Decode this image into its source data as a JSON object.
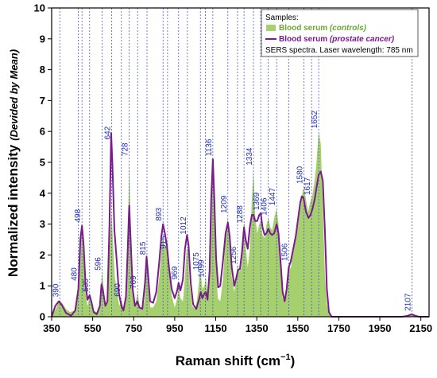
{
  "chart_data": {
    "type": "area",
    "xlabel": "Raman shift (cm",
    "xlabel_sup": "−1",
    "xlabel_close": ")",
    "ylabel_main": "Normalized intensity",
    "ylabel_note": "(Devided by Mean)",
    "xlim": [
      350,
      2190
    ],
    "ylim": [
      0,
      10
    ],
    "x_ticks": [
      350,
      550,
      750,
      950,
      1150,
      1350,
      1550,
      1750,
      1950,
      2150
    ],
    "y_ticks": [
      0,
      1,
      2,
      3,
      4,
      5,
      6,
      7,
      8,
      9,
      10
    ],
    "grid": false,
    "legend_position": "top-right",
    "legend": {
      "header": "Samples:",
      "controls_prefix": "Blood serum ",
      "controls_suffix": "(controls)",
      "cancer_prefix": "Blood serum ",
      "cancer_suffix": "(prostate cancer)",
      "note": "SERS spectra. Laser wavelength: 785 nm"
    },
    "colors": {
      "controls_fill": "#a6cf6e",
      "controls_text": "#6aa832",
      "cancer_line": "#7a1b8c",
      "peak_lines": "#3b45d6"
    },
    "peak_labels": [
      {
        "x": 390,
        "label": "390"
      },
      {
        "x": 480,
        "label": "480"
      },
      {
        "x": 498,
        "label": "498"
      },
      {
        "x": 535,
        "label": "535"
      },
      {
        "x": 596,
        "label": "596"
      },
      {
        "x": 642,
        "label": "642"
      },
      {
        "x": 690,
        "label": "690"
      },
      {
        "x": 728,
        "label": "728"
      },
      {
        "x": 769,
        "label": "769"
      },
      {
        "x": 815,
        "label": "815"
      },
      {
        "x": 893,
        "label": "893"
      },
      {
        "x": 915,
        "label": "915"
      },
      {
        "x": 969,
        "label": "969"
      },
      {
        "x": 1012,
        "label": "1012"
      },
      {
        "x": 1075,
        "label": "1075"
      },
      {
        "x": 1099,
        "label": "1099"
      },
      {
        "x": 1136,
        "label": "1136"
      },
      {
        "x": 1209,
        "label": "1209"
      },
      {
        "x": 1256,
        "label": "1256"
      },
      {
        "x": 1288,
        "label": "1288"
      },
      {
        "x": 1334,
        "label": "1334"
      },
      {
        "x": 1369,
        "label": "1369"
      },
      {
        "x": 1406,
        "label": "1406"
      },
      {
        "x": 1447,
        "label": "1447"
      },
      {
        "x": 1506,
        "label": "1506"
      },
      {
        "x": 1580,
        "label": "1580"
      },
      {
        "x": 1617,
        "label": "1617"
      },
      {
        "x": 1652,
        "label": "1652"
      },
      {
        "x": 2107,
        "label": "2107"
      }
    ],
    "series": [
      {
        "name": "Blood serum (controls)",
        "style": "filled",
        "points": [
          [
            350,
            0.05
          ],
          [
            370,
            0.25
          ],
          [
            388,
            0.55
          ],
          [
            400,
            0.45
          ],
          [
            420,
            0.25
          ],
          [
            440,
            0.15
          ],
          [
            460,
            0.2
          ],
          [
            478,
            0.75
          ],
          [
            488,
            2.3
          ],
          [
            497,
            2.7
          ],
          [
            505,
            1.9
          ],
          [
            515,
            0.8
          ],
          [
            525,
            0.35
          ],
          [
            535,
            0.65
          ],
          [
            545,
            0.4
          ],
          [
            555,
            0.2
          ],
          [
            570,
            0.15
          ],
          [
            585,
            0.35
          ],
          [
            595,
            1.45
          ],
          [
            603,
            1.0
          ],
          [
            612,
            0.4
          ],
          [
            622,
            0.45
          ],
          [
            635,
            2.7
          ],
          [
            642,
            3.4
          ],
          [
            648,
            2.6
          ],
          [
            658,
            1.3
          ],
          [
            670,
            0.75
          ],
          [
            680,
            0.35
          ],
          [
            690,
            0.55
          ],
          [
            700,
            0.3
          ],
          [
            712,
            0.6
          ],
          [
            720,
            1.8
          ],
          [
            728,
            5.1
          ],
          [
            735,
            3.1
          ],
          [
            745,
            0.9
          ],
          [
            755,
            0.3
          ],
          [
            769,
            0.8
          ],
          [
            778,
            0.35
          ],
          [
            790,
            0.2
          ],
          [
            802,
            0.5
          ],
          [
            810,
            1.5
          ],
          [
            815,
            1.9
          ],
          [
            822,
            1.0
          ],
          [
            832,
            0.3
          ],
          [
            845,
            0.3
          ],
          [
            860,
            0.5
          ],
          [
            875,
            1.3
          ],
          [
            885,
            2.2
          ],
          [
            893,
            2.7
          ],
          [
            902,
            2.2
          ],
          [
            912,
            2.3
          ],
          [
            922,
            1.6
          ],
          [
            935,
            0.7
          ],
          [
            950,
            0.3
          ],
          [
            962,
            0.6
          ],
          [
            969,
            1.05
          ],
          [
            978,
            0.6
          ],
          [
            990,
            0.5
          ],
          [
            1000,
            1.3
          ],
          [
            1008,
            2.2
          ],
          [
            1014,
            2.2
          ],
          [
            1022,
            1.1
          ],
          [
            1035,
            0.35
          ],
          [
            1050,
            0.25
          ],
          [
            1060,
            0.6
          ],
          [
            1070,
            1.3
          ],
          [
            1077,
            1.45
          ],
          [
            1085,
            0.9
          ],
          [
            1095,
            1.0
          ],
          [
            1102,
            1.3
          ],
          [
            1110,
            0.8
          ],
          [
            1120,
            1.3
          ],
          [
            1128,
            3.0
          ],
          [
            1136,
            4.9
          ],
          [
            1142,
            3.9
          ],
          [
            1150,
            1.9
          ],
          [
            1160,
            0.6
          ],
          [
            1172,
            0.5
          ],
          [
            1185,
            1.2
          ],
          [
            1198,
            2.6
          ],
          [
            1209,
            3.25
          ],
          [
            1218,
            2.4
          ],
          [
            1228,
            1.3
          ],
          [
            1240,
            0.8
          ],
          [
            1250,
            1.3
          ],
          [
            1258,
            1.7
          ],
          [
            1266,
            1.45
          ],
          [
            1275,
            1.6
          ],
          [
            1283,
            2.5
          ],
          [
            1290,
            3.1
          ],
          [
            1297,
            2.2
          ],
          [
            1306,
            1.6
          ],
          [
            1316,
            2.2
          ],
          [
            1326,
            3.8
          ],
          [
            1334,
            4.8
          ],
          [
            1342,
            3.3
          ],
          [
            1352,
            2.7
          ],
          [
            1362,
            3.0
          ],
          [
            1370,
            3.1
          ],
          [
            1378,
            2.65
          ],
          [
            1388,
            2.55
          ],
          [
            1398,
            3.0
          ],
          [
            1407,
            3.2
          ],
          [
            1416,
            2.9
          ],
          [
            1425,
            2.8
          ],
          [
            1435,
            3.2
          ],
          [
            1447,
            3.5
          ],
          [
            1456,
            3.0
          ],
          [
            1466,
            1.9
          ],
          [
            1476,
            0.6
          ],
          [
            1486,
            0.5
          ],
          [
            1496,
            1.0
          ],
          [
            1506,
            1.7
          ],
          [
            1516,
            1.55
          ],
          [
            1526,
            2.2
          ],
          [
            1540,
            2.6
          ],
          [
            1552,
            3.0
          ],
          [
            1562,
            3.5
          ],
          [
            1572,
            4.0
          ],
          [
            1580,
            4.2
          ],
          [
            1590,
            3.8
          ],
          [
            1600,
            3.4
          ],
          [
            1610,
            3.7
          ],
          [
            1620,
            3.9
          ],
          [
            1630,
            4.3
          ],
          [
            1640,
            4.9
          ],
          [
            1652,
            6.0
          ],
          [
            1662,
            5.6
          ],
          [
            1672,
            3.6
          ],
          [
            1682,
            1.4
          ],
          [
            1692,
            0.4
          ],
          [
            1702,
            0.1
          ],
          [
            1720,
            0.02
          ],
          [
            1760,
            0
          ],
          [
            2060,
            0
          ],
          [
            2085,
            0.04
          ],
          [
            2105,
            0.09
          ],
          [
            2120,
            0.04
          ],
          [
            2140,
            0
          ],
          [
            2190,
            0
          ]
        ]
      },
      {
        "name": "Blood serum (prostate cancer)",
        "style": "line",
        "points": [
          [
            350,
            0.0
          ],
          [
            368,
            0.35
          ],
          [
            385,
            0.5
          ],
          [
            400,
            0.38
          ],
          [
            420,
            0.12
          ],
          [
            445,
            0.03
          ],
          [
            465,
            0.2
          ],
          [
            480,
            0.9
          ],
          [
            490,
            2.5
          ],
          [
            498,
            2.95
          ],
          [
            506,
            2.3
          ],
          [
            515,
            1.05
          ],
          [
            525,
            0.55
          ],
          [
            535,
            0.7
          ],
          [
            545,
            0.45
          ],
          [
            555,
            0.15
          ],
          [
            570,
            0.08
          ],
          [
            585,
            0.35
          ],
          [
            593,
            1.05
          ],
          [
            600,
            0.85
          ],
          [
            612,
            0.35
          ],
          [
            622,
            0.5
          ],
          [
            632,
            3.0
          ],
          [
            640,
            5.95
          ],
          [
            646,
            5.0
          ],
          [
            656,
            2.8
          ],
          [
            668,
            1.75
          ],
          [
            678,
            0.75
          ],
          [
            690,
            0.35
          ],
          [
            700,
            0.2
          ],
          [
            712,
            0.65
          ],
          [
            720,
            2.0
          ],
          [
            728,
            3.6
          ],
          [
            735,
            2.5
          ],
          [
            745,
            0.9
          ],
          [
            756,
            0.35
          ],
          [
            768,
            0.5
          ],
          [
            778,
            0.3
          ],
          [
            792,
            0.25
          ],
          [
            805,
            1.1
          ],
          [
            813,
            1.95
          ],
          [
            820,
            1.4
          ],
          [
            830,
            0.5
          ],
          [
            845,
            0.45
          ],
          [
            860,
            0.8
          ],
          [
            875,
            1.8
          ],
          [
            885,
            2.6
          ],
          [
            893,
            3.0
          ],
          [
            902,
            2.7
          ],
          [
            912,
            2.3
          ],
          [
            922,
            1.6
          ],
          [
            935,
            0.9
          ],
          [
            950,
            0.6
          ],
          [
            962,
            0.85
          ],
          [
            969,
            1.1
          ],
          [
            978,
            0.85
          ],
          [
            990,
            1.2
          ],
          [
            1000,
            2.2
          ],
          [
            1010,
            2.65
          ],
          [
            1018,
            2.3
          ],
          [
            1028,
            1.1
          ],
          [
            1040,
            0.4
          ],
          [
            1055,
            0.25
          ],
          [
            1068,
            0.55
          ],
          [
            1077,
            0.8
          ],
          [
            1085,
            0.6
          ],
          [
            1095,
            0.75
          ],
          [
            1102,
            0.8
          ],
          [
            1110,
            0.55
          ],
          [
            1120,
            1.5
          ],
          [
            1128,
            3.8
          ],
          [
            1136,
            5.1
          ],
          [
            1142,
            4.0
          ],
          [
            1152,
            1.9
          ],
          [
            1162,
            0.95
          ],
          [
            1172,
            1.0
          ],
          [
            1185,
            1.8
          ],
          [
            1198,
            2.7
          ],
          [
            1209,
            3.05
          ],
          [
            1218,
            2.6
          ],
          [
            1228,
            1.6
          ],
          [
            1240,
            1.0
          ],
          [
            1250,
            1.25
          ],
          [
            1258,
            1.5
          ],
          [
            1268,
            1.55
          ],
          [
            1278,
            2.1
          ],
          [
            1288,
            2.9
          ],
          [
            1296,
            2.5
          ],
          [
            1306,
            2.2
          ],
          [
            1316,
            2.9
          ],
          [
            1326,
            3.3
          ],
          [
            1334,
            3.3
          ],
          [
            1342,
            3.1
          ],
          [
            1352,
            3.1
          ],
          [
            1362,
            3.3
          ],
          [
            1369,
            3.35
          ],
          [
            1378,
            2.9
          ],
          [
            1388,
            2.65
          ],
          [
            1398,
            2.7
          ],
          [
            1406,
            2.85
          ],
          [
            1416,
            2.7
          ],
          [
            1425,
            2.65
          ],
          [
            1435,
            2.7
          ],
          [
            1447,
            3.0
          ],
          [
            1456,
            2.7
          ],
          [
            1466,
            1.8
          ],
          [
            1476,
            0.8
          ],
          [
            1486,
            0.5
          ],
          [
            1496,
            0.9
          ],
          [
            1506,
            1.6
          ],
          [
            1516,
            1.8
          ],
          [
            1528,
            2.2
          ],
          [
            1540,
            2.6
          ],
          [
            1552,
            3.2
          ],
          [
            1562,
            3.7
          ],
          [
            1570,
            3.9
          ],
          [
            1578,
            3.85
          ],
          [
            1590,
            3.4
          ],
          [
            1602,
            3.2
          ],
          [
            1612,
            3.3
          ],
          [
            1622,
            3.5
          ],
          [
            1632,
            3.8
          ],
          [
            1642,
            4.2
          ],
          [
            1652,
            4.6
          ],
          [
            1662,
            4.7
          ],
          [
            1672,
            4.4
          ],
          [
            1682,
            2.8
          ],
          [
            1692,
            0.9
          ],
          [
            1702,
            0.15
          ],
          [
            1715,
            0.0
          ],
          [
            1760,
            0
          ],
          [
            2060,
            0
          ],
          [
            2085,
            0.03
          ],
          [
            2105,
            0.08
          ],
          [
            2120,
            0.04
          ],
          [
            2140,
            0
          ],
          [
            2190,
            0
          ]
        ]
      }
    ]
  }
}
